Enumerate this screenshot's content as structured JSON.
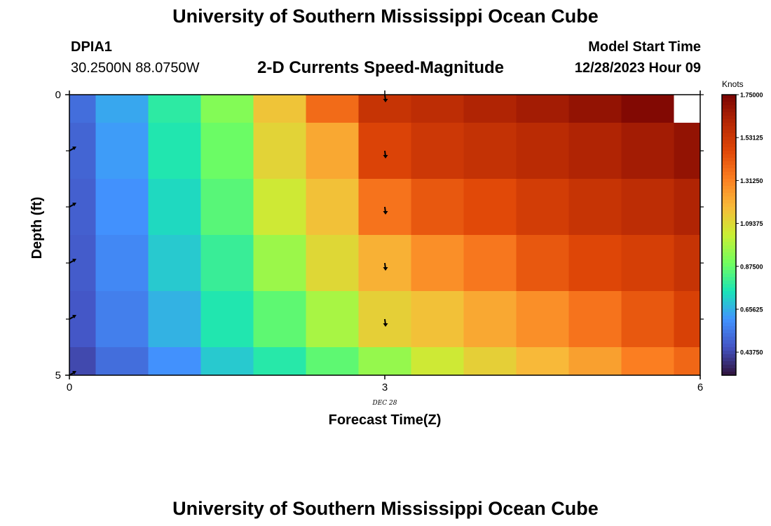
{
  "header": {
    "title_top": "University of Southern Mississippi Ocean Cube",
    "station_id": "DPIA1",
    "coordinates": "30.2500N  88.0750W",
    "subtitle": "2-D Currents Speed-Magnitude",
    "model_start_label": "Model Start Time",
    "model_start_value": "12/28/2023 Hour 09",
    "title_bottom": "University of Southern Mississippi Ocean Cube"
  },
  "chart_data": {
    "type": "heatmap",
    "title": "2-D Currents Speed-Magnitude",
    "xlabel": "Forecast Time(Z)",
    "ylabel": "Depth (ft)",
    "x_ticks": [
      "0",
      "3",
      "6"
    ],
    "x_date_label": "DEC 28",
    "y_ticks": [
      "0",
      "5"
    ],
    "xlim": [
      0,
      6
    ],
    "ylim": [
      0,
      5
    ],
    "x_edges": [
      0,
      0.25,
      0.75,
      1.25,
      1.75,
      2.25,
      2.75,
      3.25,
      3.75,
      4.25,
      4.75,
      5.25,
      5.75,
      6
    ],
    "y_edges": [
      0,
      0.5,
      1.5,
      2.5,
      3.5,
      4.5,
      5
    ],
    "values": [
      [
        0.52,
        0.64,
        0.78,
        0.92,
        1.15,
        1.37,
        1.55,
        1.58,
        1.62,
        1.65,
        1.69,
        1.73,
        null
      ],
      [
        0.5,
        0.62,
        0.76,
        0.88,
        1.11,
        1.22,
        1.48,
        1.53,
        1.56,
        1.59,
        1.62,
        1.65,
        1.69
      ],
      [
        0.49,
        0.6,
        0.73,
        0.85,
        1.05,
        1.16,
        1.35,
        1.42,
        1.46,
        1.51,
        1.55,
        1.58,
        1.62
      ],
      [
        0.48,
        0.58,
        0.7,
        0.8,
        0.96,
        1.1,
        1.2,
        1.28,
        1.34,
        1.42,
        1.47,
        1.5,
        1.55
      ],
      [
        0.47,
        0.56,
        0.66,
        0.76,
        0.86,
        0.98,
        1.12,
        1.16,
        1.22,
        1.28,
        1.35,
        1.42,
        1.49
      ],
      [
        0.44,
        0.52,
        0.6,
        0.7,
        0.77,
        0.86,
        0.95,
        1.05,
        1.12,
        1.18,
        1.24,
        1.32,
        1.38
      ]
    ],
    "arrows": [
      {
        "x": 0,
        "y": 1,
        "dir": "up-right"
      },
      {
        "x": 0,
        "y": 2,
        "dir": "up-right"
      },
      {
        "x": 0,
        "y": 3,
        "dir": "up-right"
      },
      {
        "x": 0,
        "y": 4,
        "dir": "up-right"
      },
      {
        "x": 0,
        "y": 5,
        "dir": "up-right"
      },
      {
        "x": 3,
        "y": 0,
        "dir": "down"
      },
      {
        "x": 3,
        "y": 1,
        "dir": "down"
      },
      {
        "x": 3,
        "y": 2,
        "dir": "down"
      },
      {
        "x": 3,
        "y": 3,
        "dir": "down"
      },
      {
        "x": 3,
        "y": 4,
        "dir": "down"
      }
    ],
    "colorbar": {
      "unit_label": "Knots",
      "min": 0.32,
      "max": 1.75,
      "tick_values": [
        1.75,
        1.53125,
        1.3125,
        1.09375,
        0.875,
        0.65625,
        0.4375
      ],
      "tick_labels": [
        "1.75000",
        "1.53125",
        "1.31250",
        "1.09375",
        "0.87500",
        "0.65625",
        "0.43750"
      ]
    },
    "colors": {
      "stops": [
        "#30123b",
        "#4454c4",
        "#4294ff",
        "#1ae4b6",
        "#72fe5e",
        "#c9ef34",
        "#f8ba39",
        "#fb7e21",
        "#e04707",
        "#b52704",
        "#7a0403"
      ],
      "missing": "#ffffff"
    }
  }
}
